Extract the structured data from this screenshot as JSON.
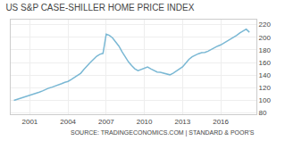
{
  "chart_data": {
    "type": "line",
    "title": "US S&P CASE-SHILLER HOME PRICE INDEX",
    "annotations": [
      "SOURCE: TRADINGECONOMICS.COM | STANDARD & POOR'S"
    ],
    "x": [
      1999.75,
      2000.0,
      2000.25,
      2000.5,
      2000.75,
      2001.0,
      2001.25,
      2001.5,
      2001.75,
      2002.0,
      2002.25,
      2002.5,
      2002.75,
      2003.0,
      2003.25,
      2003.5,
      2003.75,
      2004.0,
      2004.25,
      2004.5,
      2004.75,
      2005.0,
      2005.25,
      2005.5,
      2005.75,
      2006.0,
      2006.25,
      2006.5,
      2006.75,
      2007.0,
      2007.25,
      2007.5,
      2007.75,
      2008.0,
      2008.25,
      2008.5,
      2008.75,
      2009.0,
      2009.25,
      2009.5,
      2009.75,
      2010.0,
      2010.25,
      2010.5,
      2010.75,
      2011.0,
      2011.25,
      2011.5,
      2011.75,
      2012.0,
      2012.25,
      2012.5,
      2012.75,
      2013.0,
      2013.25,
      2013.5,
      2013.75,
      2014.0,
      2014.25,
      2014.5,
      2014.75,
      2015.0,
      2015.25,
      2015.5,
      2015.75,
      2016.0,
      2016.25,
      2016.5,
      2016.75,
      2017.0,
      2017.25,
      2017.5,
      2017.75,
      2018.0,
      2018.25
    ],
    "values": [
      100.0,
      101.5,
      103.0,
      104.5,
      106.0,
      107.5,
      109.5,
      111.5,
      113.0,
      115.0,
      117.5,
      119.5,
      121.0,
      122.5,
      124.5,
      126.5,
      128.5,
      130.0,
      133.0,
      136.0,
      139.0,
      143.0,
      149.0,
      155.0,
      160.0,
      165.0,
      170.0,
      173.0,
      174.5,
      205.0,
      203.0,
      199.0,
      193.0,
      186.0,
      177.0,
      169.0,
      161.0,
      155.0,
      150.0,
      147.0,
      149.0,
      152.0,
      153.0,
      150.0,
      147.0,
      145.0,
      144.5,
      143.0,
      141.5,
      140.5,
      143.0,
      146.0,
      149.0,
      153.0,
      159.0,
      165.0,
      169.0,
      172.0,
      174.0,
      175.5,
      176.0,
      178.0,
      181.0,
      184.0,
      186.0,
      188.0,
      191.0,
      194.0,
      196.5,
      199.0,
      203.0,
      207.0,
      210.0,
      213.0,
      208.0
    ],
    "color": "#7ab8d4",
    "xlim": [
      1999.5,
      2018.8
    ],
    "xticks": [
      2001,
      2004,
      2007,
      2010,
      2013,
      2016
    ],
    "ylim": [
      78,
      228
    ],
    "yticks": [
      80,
      100,
      120,
      140,
      160,
      180,
      200,
      220
    ],
    "grid": true
  }
}
